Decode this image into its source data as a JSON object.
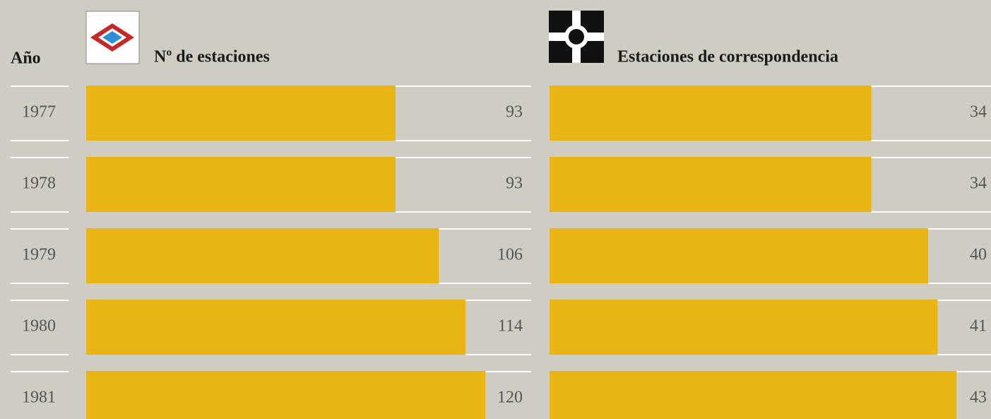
{
  "chart_data": [
    {
      "type": "bar",
      "orientation": "horizontal",
      "title": "Nº de estaciones",
      "y_label": "Año",
      "categories": [
        "1977",
        "1978",
        "1979",
        "1980",
        "1981"
      ],
      "values": [
        93,
        93,
        106,
        114,
        120
      ],
      "color": "#e8b514"
    },
    {
      "type": "bar",
      "orientation": "horizontal",
      "title": "Estaciones de correspondencia",
      "values": [
        34,
        34,
        40,
        41,
        43
      ],
      "color": "#e8b514"
    }
  ]
}
